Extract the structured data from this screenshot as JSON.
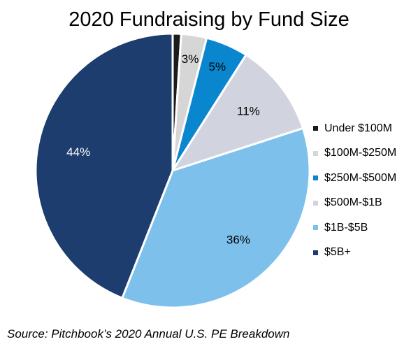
{
  "chart_data": {
    "type": "pie",
    "title": "2020 Fundraising by Fund Size",
    "categories": [
      "Under $100M",
      "$100M-$250M",
      "$250M-$500M",
      "$500M-$1B",
      "$1B-$5B",
      "$5B+"
    ],
    "values": [
      1,
      3,
      5,
      11,
      36,
      44
    ],
    "data_labels": [
      "",
      "3%",
      "5%",
      "11%",
      "36%",
      "44%"
    ],
    "colors": [
      "#1b1b1b",
      "#d6d6d6",
      "#0a86cf",
      "#d1d4de",
      "#7cc0eb",
      "#1c3d6e"
    ],
    "label_colors": [
      "#000000",
      "#000000",
      "#000000",
      "#000000",
      "#000000",
      "#ffffff"
    ],
    "start_angle_deg": 0,
    "direction": "clockwise",
    "legend": "right"
  },
  "source": "Source: Pitchbook’s 2020 Annual U.S. PE Breakdown"
}
